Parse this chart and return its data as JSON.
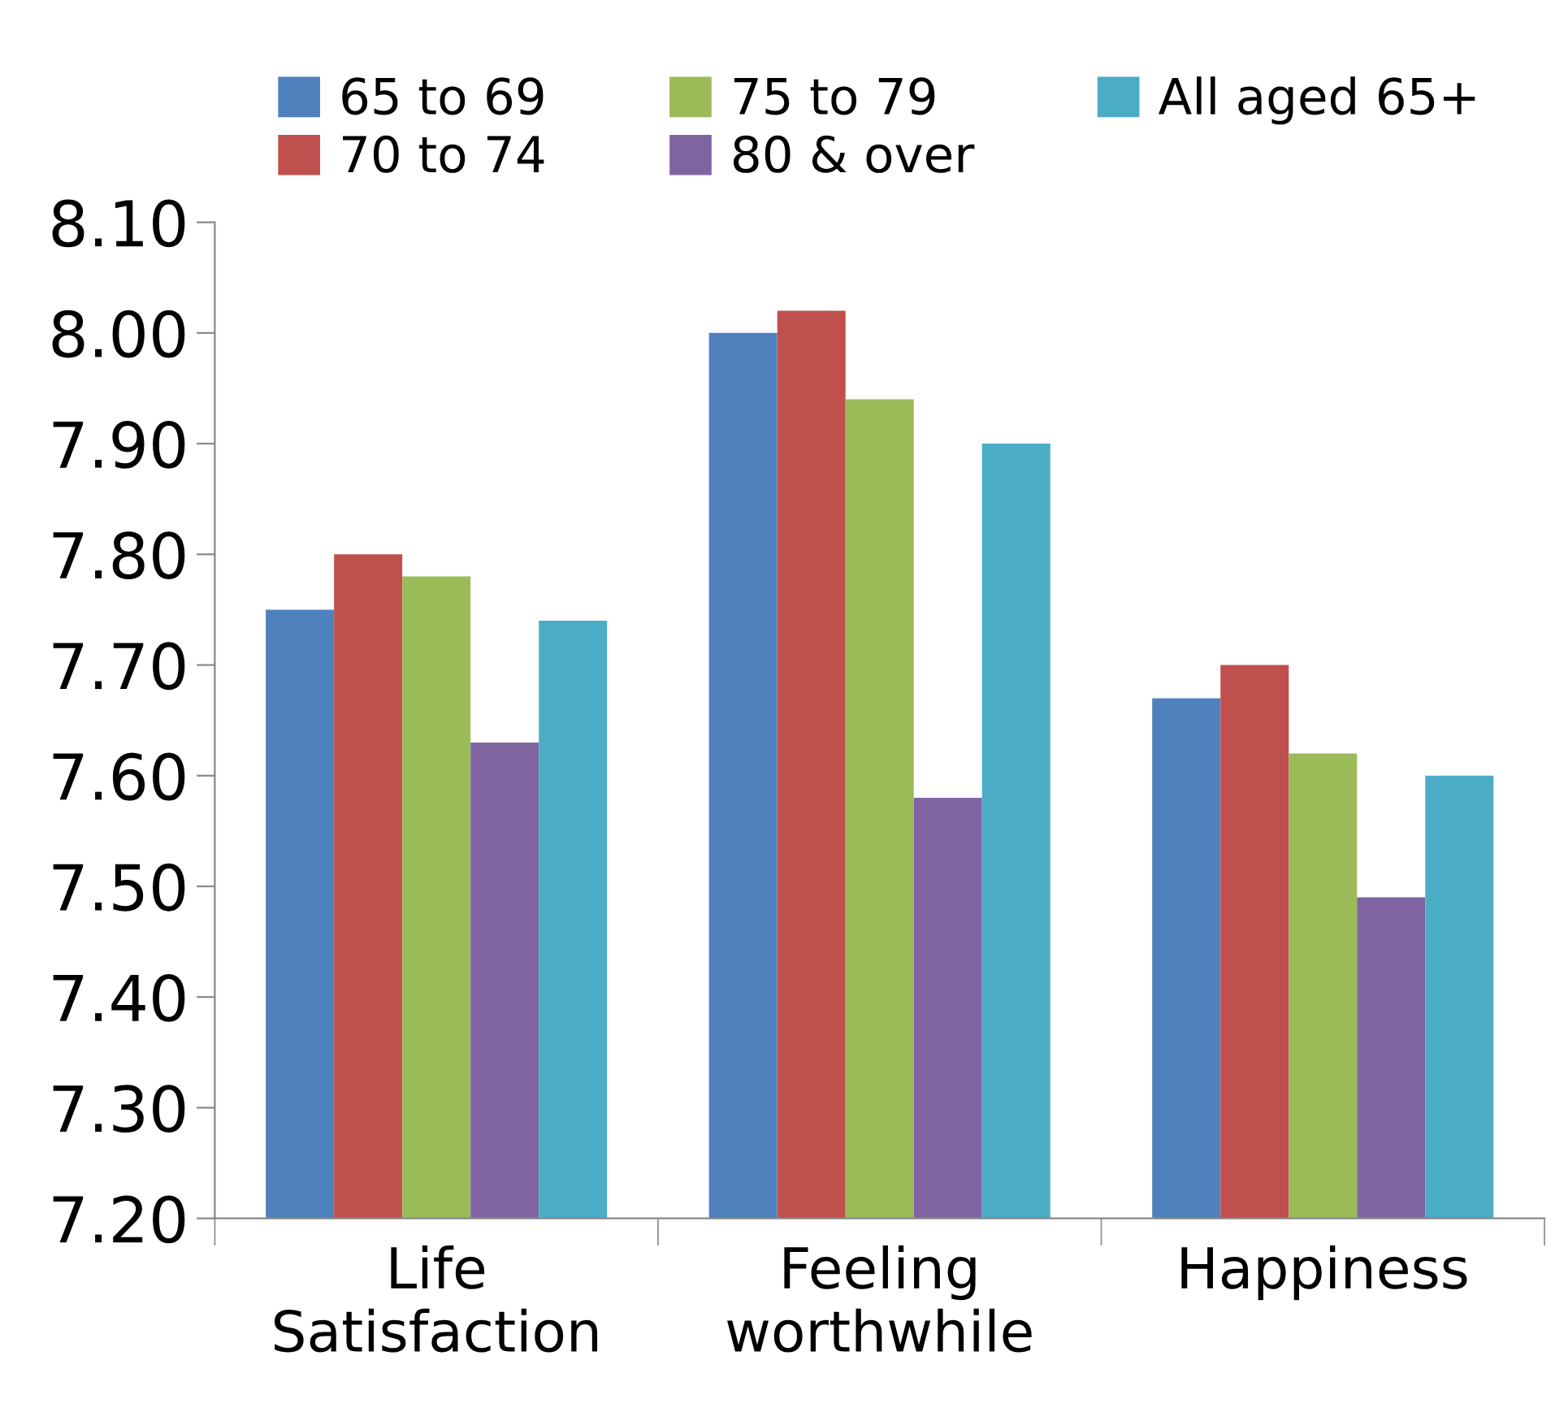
{
  "chart_data": {
    "type": "bar",
    "categories": [
      "Life\nSatisfaction",
      "Feeling\nworthwhile",
      "Happiness"
    ],
    "series": [
      {
        "name": "65 to 69",
        "color": "#4f81bd",
        "values": [
          7.75,
          8.0,
          7.67
        ]
      },
      {
        "name": "70 to 74",
        "color": "#c0504d",
        "values": [
          7.8,
          8.02,
          7.7
        ]
      },
      {
        "name": "75 to 79",
        "color": "#9bbb59",
        "values": [
          7.78,
          7.94,
          7.62
        ]
      },
      {
        "name": "80 & over",
        "color": "#8064a2",
        "values": [
          7.63,
          7.58,
          7.49
        ]
      },
      {
        "name": "All aged 65+",
        "color": "#4bacc6",
        "values": [
          7.74,
          7.9,
          7.6
        ]
      }
    ],
    "ylim": [
      7.2,
      8.1
    ],
    "yticks": [
      {
        "value": 7.2,
        "label": "7.20"
      },
      {
        "value": 7.3,
        "label": "7.30"
      },
      {
        "value": 7.4,
        "label": "7.40"
      },
      {
        "value": 7.5,
        "label": "7.50"
      },
      {
        "value": 7.6,
        "label": "7.60"
      },
      {
        "value": 7.7,
        "label": "7.70"
      },
      {
        "value": 7.8,
        "label": "7.80"
      },
      {
        "value": 7.9,
        "label": "7.90"
      },
      {
        "value": 8.0,
        "label": "8.00"
      },
      {
        "value": 8.1,
        "label": "8.10"
      }
    ],
    "legend": "top",
    "grid": false
  }
}
